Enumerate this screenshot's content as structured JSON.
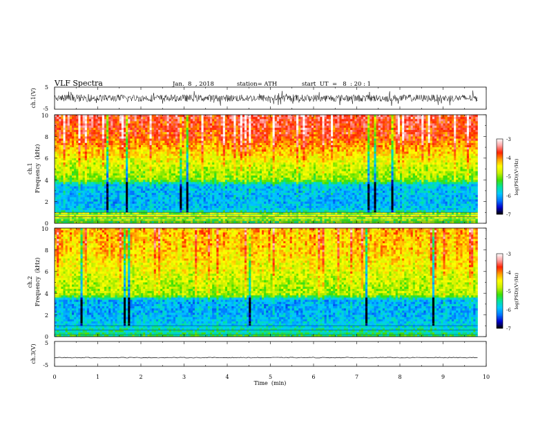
{
  "header": {
    "title": "VLF  Spectra",
    "date": "Jan.  8  , 2018",
    "station": "station= ATH",
    "start_ut": "start  UT  =   8  : 20 : 1"
  },
  "chart_data": [
    {
      "type": "line",
      "panel": "ch1-waveform",
      "ylabel": "ch.1(V)",
      "yticks": [
        "5",
        "-5"
      ],
      "ylim": [
        -5,
        5
      ],
      "xlim": [
        0,
        10
      ],
      "data_extent_min": 9.8,
      "approx_amplitude_V": 1.6,
      "color": "#000000"
    },
    {
      "type": "heatmap",
      "panel": "ch1-spectrogram",
      "ylabel_top": "ch.1",
      "ylabel": "Frequency  (kHz)",
      "yticks": [
        "0",
        "2",
        "4",
        "6",
        "8",
        "10"
      ],
      "ylim_khz": [
        0,
        10
      ],
      "xlim_min": [
        0,
        10
      ],
      "data_extent_min": 9.8,
      "colorbar": {
        "label": "log(PSD)(V²/Hz)",
        "range": [
          -7,
          -3
        ],
        "ticks": [
          "-3",
          "-4",
          "-5",
          "-6",
          "-7"
        ]
      },
      "band_profile_khz_vs_level": [
        [
          0,
          -5.2
        ],
        [
          0.8,
          -4.6
        ],
        [
          1.2,
          -5.9
        ],
        [
          2.0,
          -6.0
        ],
        [
          3.5,
          -5.9
        ],
        [
          4.0,
          -5.0
        ],
        [
          5.0,
          -4.8
        ],
        [
          6.0,
          -4.5
        ],
        [
          8.0,
          -3.8
        ],
        [
          10.0,
          -3.6
        ]
      ]
    },
    {
      "type": "heatmap",
      "panel": "ch2-spectrogram",
      "ylabel_top": "ch.2",
      "ylabel": "Frequency  (kHz)",
      "yticks": [
        "0",
        "2",
        "4",
        "6",
        "8",
        "10"
      ],
      "ylim_khz": [
        0,
        10
      ],
      "xlim_min": [
        0,
        10
      ],
      "data_extent_min": 9.8,
      "colorbar": {
        "label": "log(PSD)(V²/Hz)",
        "range": [
          -7,
          -3
        ],
        "ticks": [
          "-3",
          "-4",
          "-5",
          "-6",
          "-7"
        ]
      },
      "band_profile_khz_vs_level": [
        [
          0,
          -5.3
        ],
        [
          1.0,
          -5.8
        ],
        [
          2.0,
          -6.0
        ],
        [
          3.4,
          -6.0
        ],
        [
          3.8,
          -4.9
        ],
        [
          5.0,
          -4.8
        ],
        [
          6.0,
          -4.6
        ],
        [
          8.0,
          -4.3
        ],
        [
          10.0,
          -4.2
        ]
      ]
    },
    {
      "type": "line",
      "panel": "ch3-waveform",
      "ylabel": "ch.3(V)",
      "yticks": [
        "5",
        "-5"
      ],
      "ylim": [
        -5,
        5
      ],
      "xlim": [
        0,
        10
      ],
      "data_extent_min": 9.8,
      "approx_level_V": -1.5,
      "color": "#000000"
    }
  ],
  "x_axis": {
    "label": "Time  (min)",
    "ticks": [
      "0",
      "1",
      "2",
      "3",
      "4",
      "5",
      "6",
      "7",
      "8",
      "9",
      "10"
    ]
  },
  "colors": {
    "scale": [
      "#000000",
      "#0000cc",
      "#0077ff",
      "#00c8ff",
      "#00e4a0",
      "#40e000",
      "#c8f000",
      "#ffff00",
      "#ffa000",
      "#ff2000",
      "#ffa0a0",
      "#ffffff"
    ]
  }
}
